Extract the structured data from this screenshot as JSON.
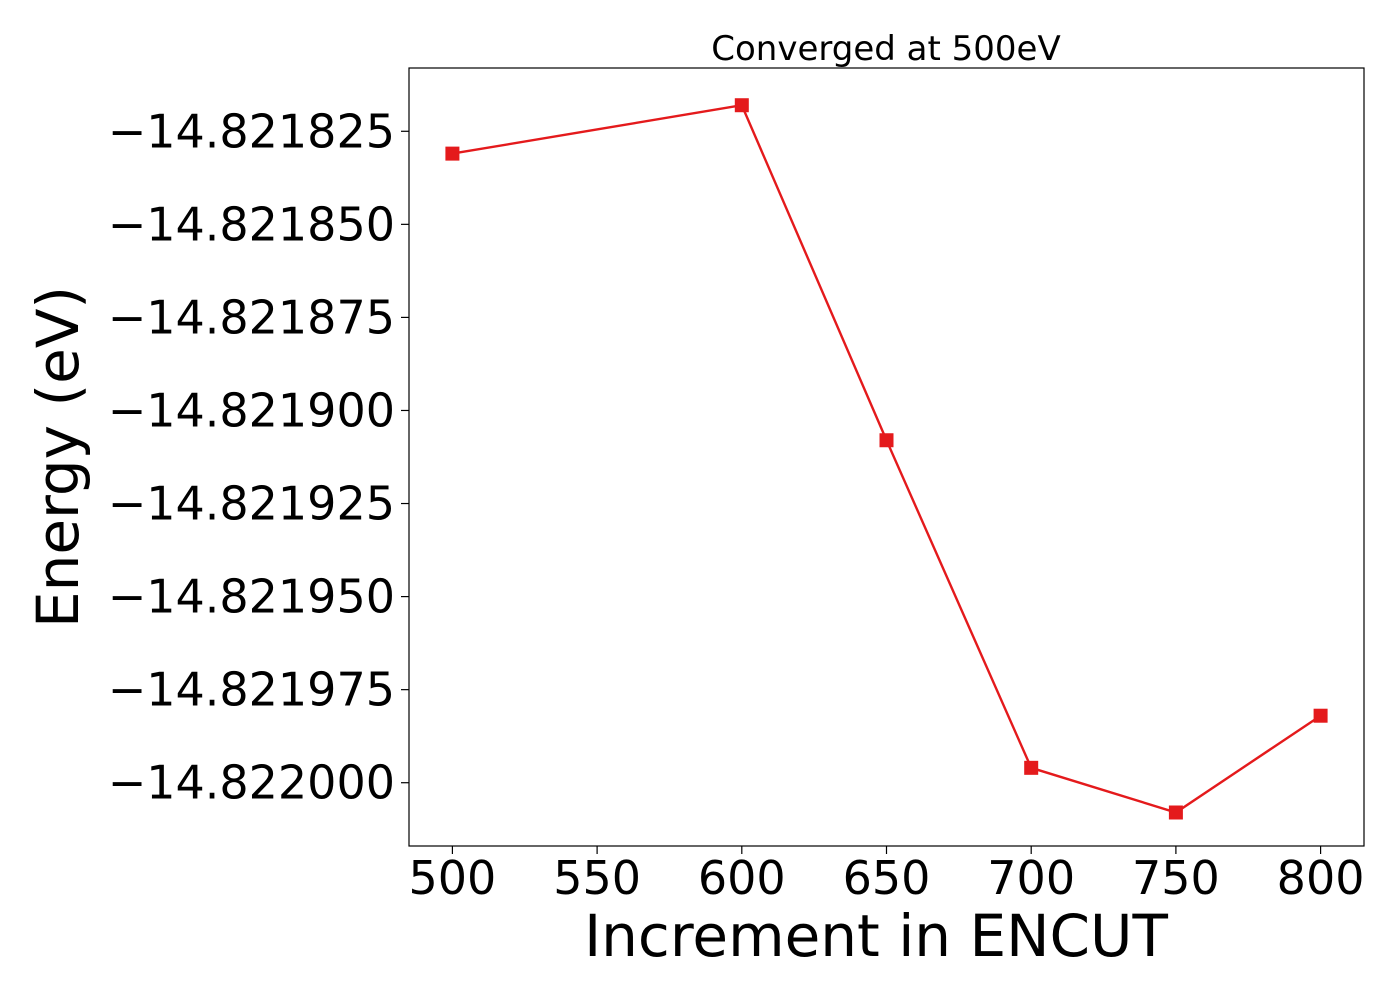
{
  "chart_data": {
    "type": "line",
    "title": "Converged at 500eV",
    "xlabel": "Increment in ENCUT",
    "ylabel": "Energy (eV)",
    "x": [
      500,
      600,
      650,
      700,
      750,
      800
    ],
    "series": [
      {
        "values": [
          -14.821831,
          -14.821818,
          -14.821908,
          -14.821996,
          -14.822008,
          -14.821982
        ]
      }
    ],
    "xlim": [
      485,
      815
    ],
    "ylim": [
      -14.822017,
      -14.821808
    ],
    "xticks": [
      500,
      550,
      600,
      650,
      700,
      750,
      800
    ],
    "xtick_labels": [
      "500",
      "550",
      "600",
      "650",
      "700",
      "750",
      "800"
    ],
    "yticks": [
      -14.821825,
      -14.82185,
      -14.821875,
      -14.8219,
      -14.821925,
      -14.82195,
      -14.821975,
      -14.822
    ],
    "ytick_labels": [
      "−14.821825",
      "−14.821850",
      "−14.821875",
      "−14.821900",
      "−14.821925",
      "−14.821950",
      "−14.821975",
      "−14.822000"
    ],
    "grid": false,
    "legend": "none",
    "marker": "square",
    "line_color": "#e41a1c"
  }
}
